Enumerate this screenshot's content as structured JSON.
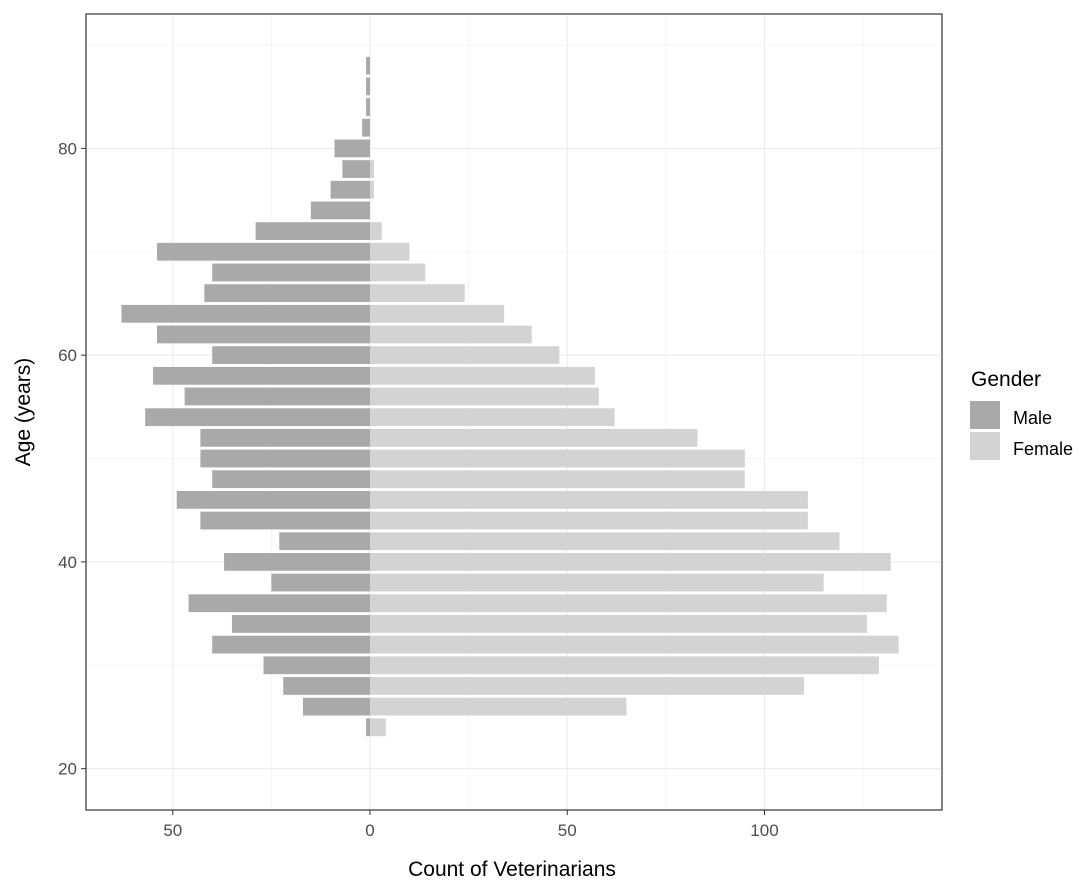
{
  "chart_data": {
    "type": "bar",
    "orientation": "horizontal",
    "subtype": "population-pyramid",
    "title": "",
    "xlabel": "Count of Veterinarians",
    "ylabel": "Age (years)",
    "x_ticks": [
      {
        "value": -50,
        "label": "50"
      },
      {
        "value": 0,
        "label": "0"
      },
      {
        "value": 50,
        "label": "50"
      },
      {
        "value": 100,
        "label": "100"
      }
    ],
    "y_ticks": [
      {
        "value": 20,
        "label": "20"
      },
      {
        "value": 40,
        "label": "40"
      },
      {
        "value": 60,
        "label": "60"
      },
      {
        "value": 80,
        "label": "80"
      }
    ],
    "xlim": [
      -72,
      145
    ],
    "ylim": [
      16,
      93
    ],
    "grid": true,
    "legend": {
      "title": "Gender",
      "placement": "right"
    },
    "categories": [
      24,
      26,
      28,
      30,
      32,
      34,
      36,
      38,
      40,
      42,
      44,
      46,
      48,
      50,
      52,
      54,
      56,
      58,
      60,
      62,
      64,
      66,
      68,
      70,
      72,
      74,
      76,
      78,
      80,
      82,
      84,
      86,
      88
    ],
    "series": [
      {
        "name": "Male",
        "color": "#a9a9a9",
        "values": [
          1,
          17,
          22,
          27,
          40,
          35,
          46,
          25,
          37,
          23,
          43,
          49,
          40,
          43,
          43,
          57,
          47,
          55,
          40,
          54,
          63,
          42,
          40,
          54,
          29,
          15,
          10,
          7,
          9,
          2,
          1,
          1,
          1
        ]
      },
      {
        "name": "Female",
        "color": "#d3d3d3",
        "values": [
          4,
          65,
          110,
          129,
          134,
          126,
          131,
          115,
          132,
          119,
          111,
          111,
          95,
          95,
          83,
          62,
          58,
          57,
          48,
          41,
          34,
          24,
          14,
          10,
          3,
          0,
          1,
          1,
          0,
          0,
          0,
          0,
          0
        ]
      }
    ]
  }
}
